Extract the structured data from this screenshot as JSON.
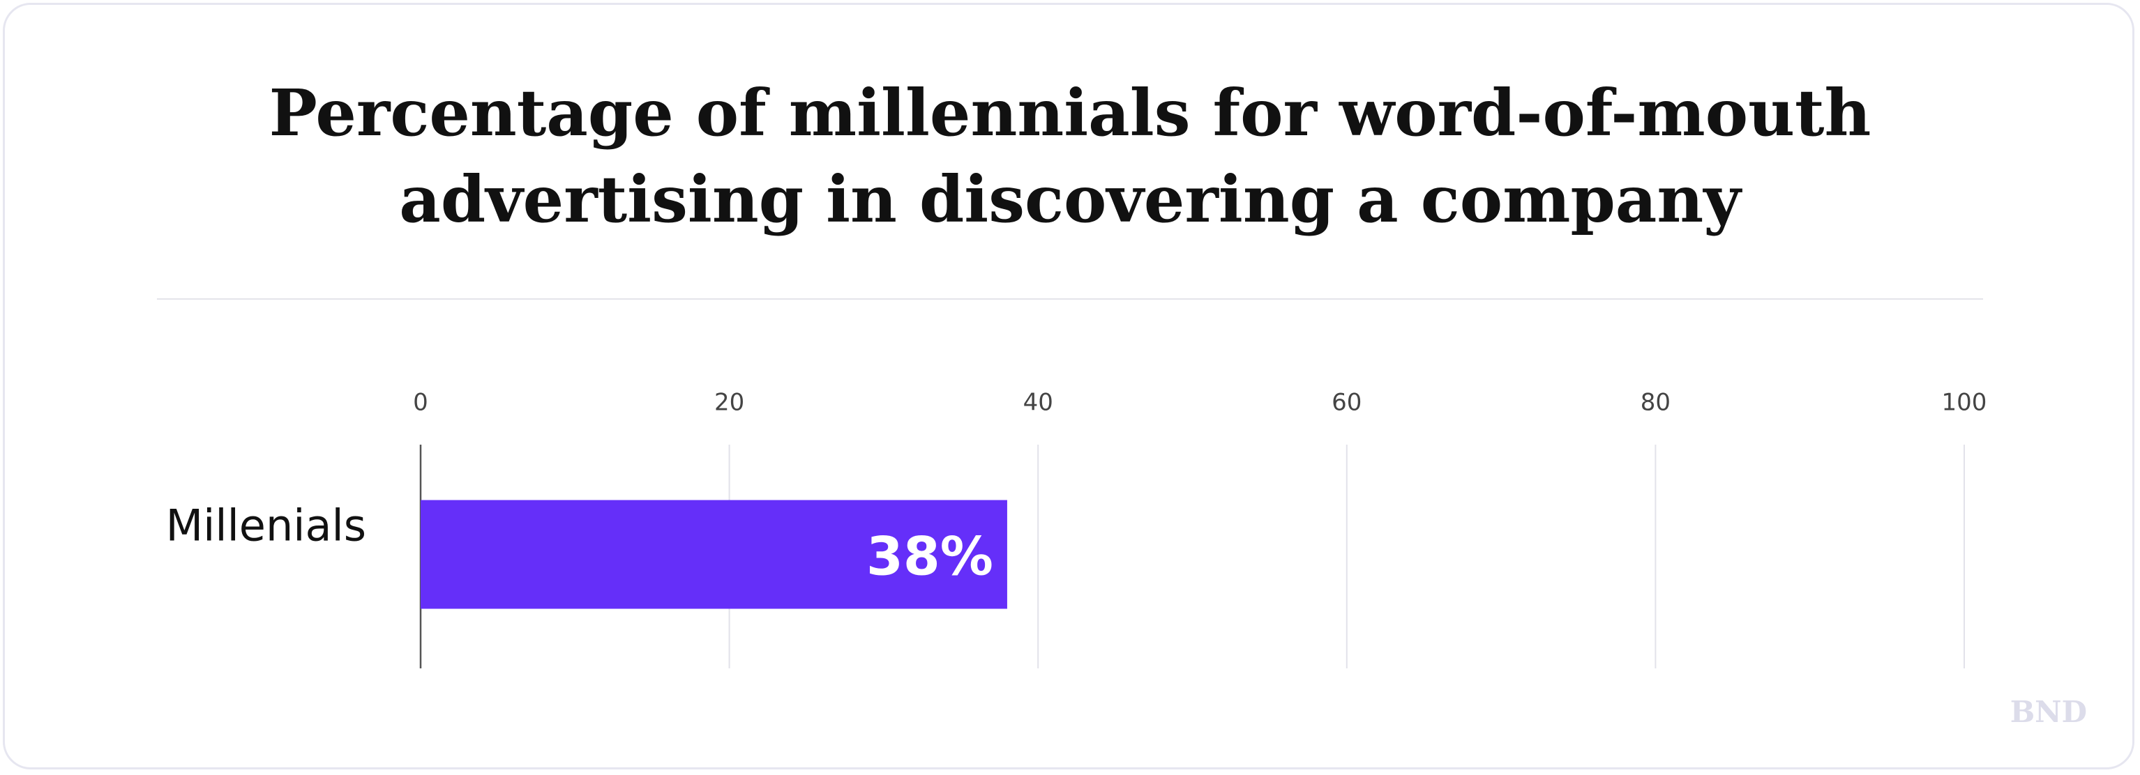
{
  "chart_data": {
    "type": "bar",
    "orientation": "horizontal",
    "title": "Percentage of millennials for word-of-mouth advertising in discovering a company",
    "categories": [
      "Millenials"
    ],
    "values": [
      38
    ],
    "value_labels": [
      "38%"
    ],
    "color": "#652ff9",
    "xlim": [
      0,
      100
    ],
    "xticks": [
      0,
      20,
      40,
      60,
      80,
      100
    ],
    "grid": true
  },
  "watermark": "BND"
}
